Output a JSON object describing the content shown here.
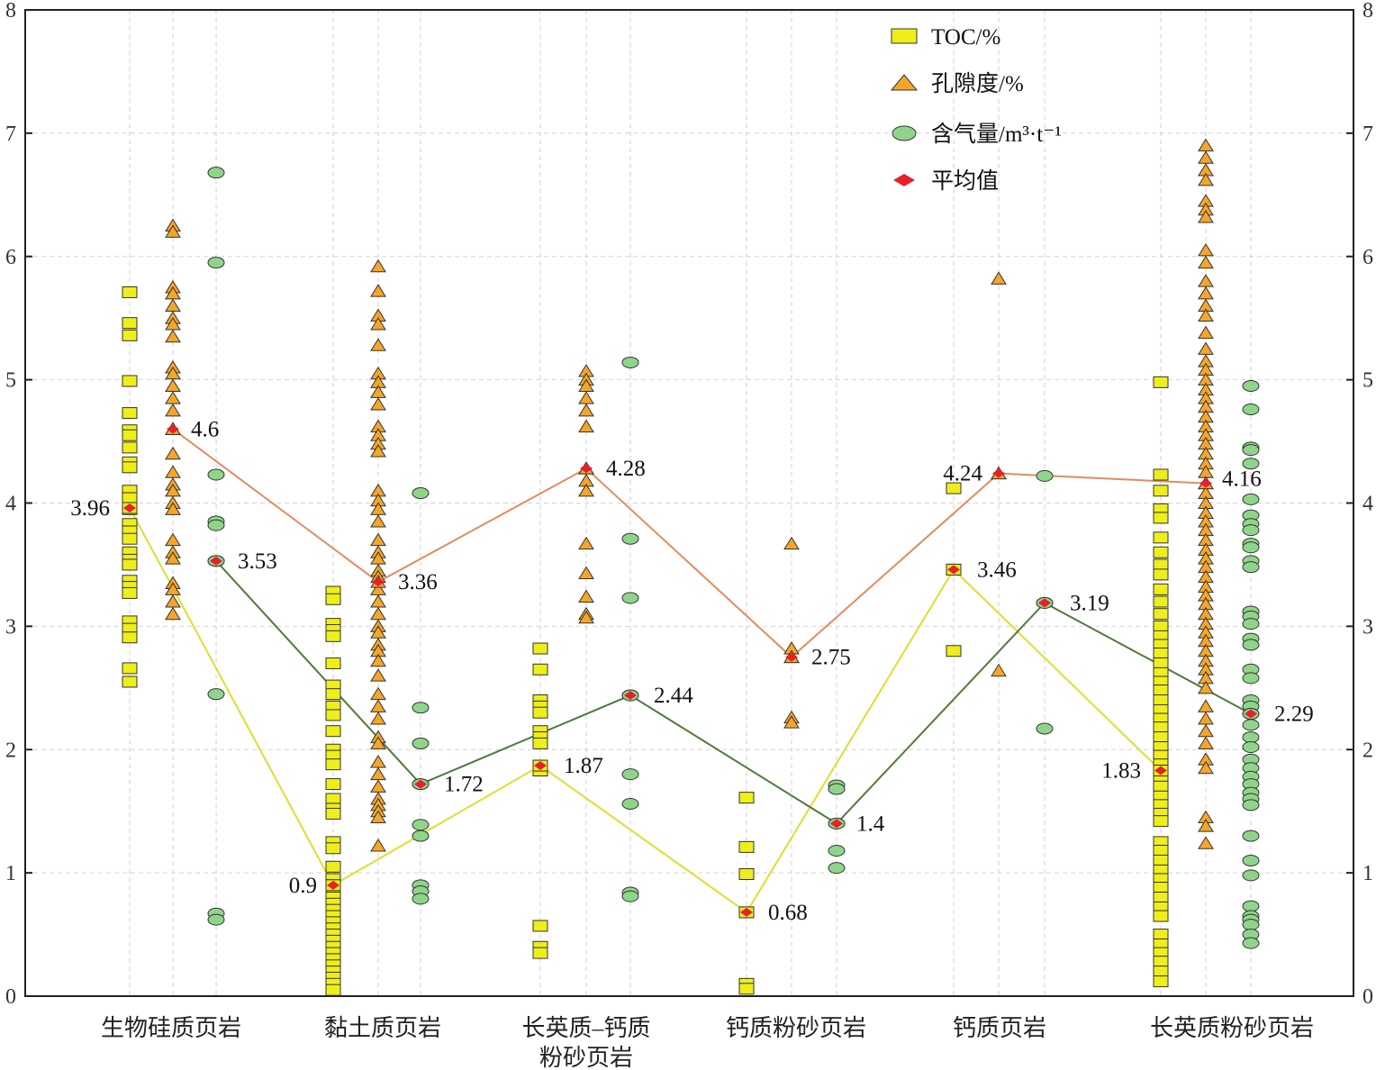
{
  "chart_data": {
    "type": "scatter",
    "title": "",
    "xlabel": "",
    "ylabel": "",
    "ylim": [
      0,
      8
    ],
    "yticks": [
      "0",
      "1",
      "2",
      "3",
      "4",
      "5",
      "6",
      "7",
      "8"
    ],
    "grid": true,
    "legend_position": "top-right",
    "categories": [
      {
        "lines": [
          "生物硅质页岩"
        ]
      },
      {
        "lines": [
          "黏土质页岩"
        ]
      },
      {
        "lines": [
          "长英质–钙质",
          "粉砂页岩"
        ]
      },
      {
        "lines": [
          "钙质粉砂页岩"
        ]
      },
      {
        "lines": [
          "钙质页岩"
        ]
      },
      {
        "lines": [
          "长英质粉砂页岩"
        ]
      }
    ],
    "legend": {
      "toc": "TOC/%",
      "porosity": "孔隙度/%",
      "gas": "含气量/m³·t⁻¹",
      "mean": "平均值"
    },
    "colors": {
      "toc": "#eeee1a",
      "porosity": "#f4a62a",
      "gas": "#8fd48a",
      "mean": "#e8202a",
      "toc_line": "#dede30",
      "porosity_line": "#e38b5c",
      "gas_line": "#4f7a3c"
    },
    "series": [
      {
        "name": "TOC/%",
        "key": "toc",
        "means": [
          3.96,
          0.9,
          1.87,
          0.68,
          3.46,
          1.83
        ],
        "mean_labels": [
          "3.96",
          "0.9",
          "1.87",
          "0.68",
          "3.46",
          "1.83"
        ],
        "points": [
          [
            5.71,
            5.46,
            5.36,
            4.99,
            4.73,
            4.59,
            4.55,
            4.45,
            4.33,
            4.29,
            4.1,
            4.04,
            3.95,
            3.83,
            3.77,
            3.71,
            3.6,
            3.54,
            3.5,
            3.37,
            3.32,
            3.27,
            3.04,
            2.98,
            2.91,
            2.66,
            2.55
          ],
          [
            3.28,
            3.22,
            3.02,
            2.97,
            2.92,
            2.7,
            2.52,
            2.45,
            2.35,
            2.28,
            2.15,
            2.0,
            1.95,
            1.88,
            1.72,
            1.6,
            1.52,
            1.48,
            1.25,
            1.2,
            1.05,
            0.95,
            0.9,
            0.85,
            0.8,
            0.75,
            0.7,
            0.65,
            0.6,
            0.55,
            0.5,
            0.45,
            0.4,
            0.35,
            0.3,
            0.25,
            0.2,
            0.15,
            0.1,
            0.05
          ],
          [
            2.82,
            2.65,
            2.4,
            2.35,
            2.3,
            2.15,
            2.1,
            2.05,
            1.87,
            1.83,
            0.57,
            0.4,
            0.35
          ],
          [
            1.61,
            1.21,
            0.99,
            0.68,
            0.1,
            0.06
          ],
          [
            4.12,
            3.46,
            2.8
          ],
          [
            4.98,
            4.23,
            4.1,
            3.95,
            3.88,
            3.72,
            3.6,
            3.5,
            3.42,
            3.3,
            3.2,
            3.1,
            3.0,
            2.92,
            2.85,
            2.78,
            2.7,
            2.62,
            2.55,
            2.48,
            2.4,
            2.32,
            2.25,
            2.18,
            2.1,
            2.02,
            1.95,
            1.88,
            1.83,
            1.78,
            1.7,
            1.62,
            1.55,
            1.48,
            1.42,
            1.25,
            1.18,
            1.1,
            1.02,
            0.95,
            0.88,
            0.8,
            0.72,
            0.65,
            0.5,
            0.42,
            0.35,
            0.28,
            0.2,
            0.12
          ]
        ]
      },
      {
        "name": "孔隙度/%",
        "key": "porosity",
        "means": [
          4.6,
          3.36,
          4.28,
          2.75,
          4.24,
          4.16
        ],
        "mean_labels": [
          "4.6",
          "3.36",
          "4.28",
          "2.75",
          "4.24",
          "4.16"
        ],
        "points": [
          [
            6.25,
            6.2,
            5.75,
            5.7,
            5.6,
            5.5,
            5.45,
            5.35,
            5.1,
            5.05,
            4.95,
            4.85,
            4.75,
            4.6,
            4.4,
            4.25,
            4.15,
            4.1,
            4.0,
            3.95,
            3.7,
            3.6,
            3.55,
            3.35,
            3.3,
            3.2,
            3.1
          ],
          [
            5.92,
            5.72,
            5.52,
            5.45,
            5.28,
            5.05,
            4.98,
            4.9,
            4.8,
            4.62,
            4.55,
            4.48,
            4.42,
            4.1,
            4.02,
            3.95,
            3.85,
            3.7,
            3.6,
            3.55,
            3.45,
            3.4,
            3.3,
            3.2,
            3.1,
            3.0,
            2.95,
            2.85,
            2.8,
            2.72,
            2.6,
            2.45,
            2.35,
            2.25,
            2.1,
            2.05,
            1.9,
            1.8,
            1.7,
            1.6,
            1.55,
            1.5,
            1.45,
            1.22
          ],
          [
            5.07,
            5.0,
            4.95,
            4.85,
            4.75,
            4.62,
            4.28,
            4.18,
            4.1,
            3.67,
            3.43,
            3.24,
            3.1,
            3.07
          ],
          [
            3.67,
            2.82,
            2.75,
            2.26,
            2.22
          ],
          [
            5.82,
            4.24,
            2.64
          ],
          [
            6.9,
            6.8,
            6.7,
            6.62,
            6.45,
            6.38,
            6.32,
            6.05,
            5.95,
            5.8,
            5.7,
            5.6,
            5.52,
            5.38,
            5.25,
            5.15,
            5.08,
            5.0,
            4.92,
            4.85,
            4.78,
            4.7,
            4.62,
            4.55,
            4.48,
            4.4,
            4.32,
            4.25,
            4.16,
            4.08,
            4.0,
            3.92,
            3.85,
            3.78,
            3.7,
            3.62,
            3.55,
            3.48,
            3.4,
            3.32,
            3.25,
            3.18,
            3.1,
            3.02,
            2.95,
            2.88,
            2.8,
            2.72,
            2.65,
            2.58,
            2.5,
            2.35,
            2.25,
            2.15,
            2.05,
            1.92,
            1.85,
            1.45,
            1.38,
            1.24
          ]
        ]
      },
      {
        "name": "含气量/m³·t⁻¹",
        "key": "gas",
        "means": [
          3.53,
          1.72,
          2.44,
          1.4,
          3.19,
          2.29
        ],
        "mean_labels": [
          "3.53",
          "1.72",
          "2.44",
          "1.4",
          "3.19",
          "2.29"
        ],
        "points": [
          [
            6.68,
            5.95,
            4.23,
            3.85,
            3.82,
            3.53,
            2.45,
            0.67,
            0.62
          ],
          [
            4.08,
            2.34,
            2.05,
            1.72,
            1.39,
            1.3,
            0.9,
            0.85,
            0.79
          ],
          [
            5.14,
            3.71,
            3.23,
            2.44,
            1.8,
            1.56,
            0.84,
            0.81
          ],
          [
            1.71,
            1.68,
            1.4,
            1.18,
            1.04
          ],
          [
            4.22,
            3.19,
            2.17
          ],
          [
            4.95,
            4.76,
            4.45,
            4.43,
            4.32,
            4.03,
            3.9,
            3.83,
            3.78,
            3.67,
            3.64,
            3.53,
            3.48,
            3.12,
            3.08,
            3.02,
            2.9,
            2.85,
            2.65,
            2.58,
            2.4,
            2.35,
            2.29,
            2.2,
            2.1,
            2.02,
            1.92,
            1.85,
            1.78,
            1.72,
            1.65,
            1.6,
            1.55,
            1.3,
            1.1,
            0.98,
            0.73,
            0.65,
            0.62,
            0.58,
            0.5,
            0.43
          ]
        ]
      }
    ]
  }
}
